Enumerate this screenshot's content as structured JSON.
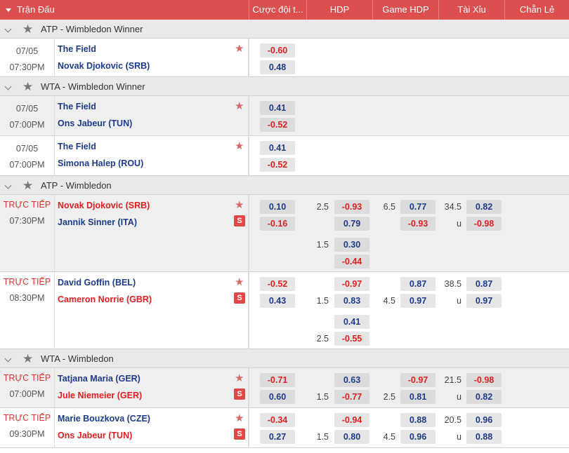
{
  "header": {
    "columns": [
      "Trận Đấu",
      "Cược đội t...",
      "HDP",
      "Game HDP",
      "Tài Xỉu",
      "Chẵn Lẻ"
    ]
  },
  "leagues": [
    {
      "name": "ATP - Wimbledon Winner",
      "matches": [
        {
          "time": [
            "07/05",
            "07:30PM"
          ],
          "live": false,
          "home": "The Field",
          "away": "Novak Djokovic (SRB)",
          "home_red": false,
          "away_red": false,
          "tv": false,
          "ml": [
            "-0.60",
            "0.48"
          ]
        }
      ]
    },
    {
      "name": "WTA - Wimbledon Winner",
      "matches": [
        {
          "time": [
            "07/05",
            "07:00PM"
          ],
          "live": false,
          "home": "The Field",
          "away": "Ons Jabeur (TUN)",
          "home_red": false,
          "away_red": false,
          "tv": false,
          "ml": [
            "0.41",
            "-0.52"
          ]
        },
        {
          "time": [
            "07/05",
            "07:00PM"
          ],
          "live": false,
          "home": "The Field",
          "away": "Simona Halep (ROU)",
          "home_red": false,
          "away_red": false,
          "tv": false,
          "ml": [
            "0.41",
            "-0.52"
          ]
        }
      ]
    },
    {
      "name": "ATP - Wimbledon",
      "matches": [
        {
          "time": [
            "TRỰC TIẾP",
            "07:30PM"
          ],
          "live": true,
          "home": "Novak Djokovic (SRB)",
          "away": "Jannik Sinner (ITA)",
          "home_red": true,
          "away_red": false,
          "tv": true,
          "ml": [
            "0.10",
            "-0.16"
          ],
          "hdp": [
            {
              "line": "2.5",
              "row": 0,
              "odds": [
                "-0.93",
                "0.79"
              ]
            },
            {
              "line": "1.5",
              "row": 1,
              "odds": [
                "0.30",
                "-0.44"
              ]
            }
          ],
          "game": {
            "line": "6.5",
            "odds": [
              "0.77",
              "-0.93"
            ]
          },
          "ou": {
            "line": "34.5",
            "u": "u",
            "odds": [
              "0.82",
              "-0.98"
            ]
          }
        },
        {
          "time": [
            "TRỰC TIẾP",
            "08:30PM"
          ],
          "live": true,
          "home": "David Goffin (BEL)",
          "away": "Cameron Norrie (GBR)",
          "home_red": false,
          "away_red": true,
          "tv": true,
          "ml": [
            "-0.52",
            "0.43"
          ],
          "hdp": [
            {
              "line": "1.5",
              "row": 0,
              "odds": [
                "-0.97",
                "0.83"
              ],
              "line_bottom": true
            },
            {
              "line": "2.5",
              "row": 1,
              "odds": [
                "0.41",
                "-0.55"
              ],
              "line_bottom": true
            }
          ],
          "game": {
            "line": "4.5",
            "odds": [
              "0.87",
              "0.97"
            ],
            "line_bottom": true
          },
          "ou": {
            "line": "38.5",
            "u": "u",
            "odds": [
              "0.87",
              "0.97"
            ]
          }
        }
      ]
    },
    {
      "name": "WTA - Wimbledon",
      "matches": [
        {
          "time": [
            "TRỰC TIẾP",
            "07:00PM"
          ],
          "live": true,
          "home": "Tatjana Maria (GER)",
          "away": "Jule Niemeier (GER)",
          "home_red": false,
          "away_red": true,
          "tv": true,
          "ml": [
            "-0.71",
            "0.60"
          ],
          "hdp": [
            {
              "line": "1.5",
              "row": 0,
              "odds": [
                "0.63",
                "-0.77"
              ],
              "line_bottom": true
            }
          ],
          "game": {
            "line": "2.5",
            "odds": [
              "-0.97",
              "0.81"
            ],
            "line_bottom": true
          },
          "ou": {
            "line": "21.5",
            "u": "u",
            "odds": [
              "-0.98",
              "0.82"
            ]
          }
        },
        {
          "time": [
            "TRỰC TIẾP",
            "09:30PM"
          ],
          "live": true,
          "home": "Marie Bouzkova (CZE)",
          "away": "Ons Jabeur (TUN)",
          "home_red": false,
          "away_red": true,
          "tv": true,
          "ml": [
            "-0.34",
            "0.27"
          ],
          "hdp": [
            {
              "line": "1.5",
              "row": 0,
              "odds": [
                "-0.94",
                "0.80"
              ],
              "line_bottom": true
            }
          ],
          "game": {
            "line": "4.5",
            "odds": [
              "0.88",
              "0.96"
            ],
            "line_bottom": true
          },
          "ou": {
            "line": "20.5",
            "u": "u",
            "odds": [
              "0.96",
              "0.88"
            ]
          }
        }
      ]
    }
  ]
}
